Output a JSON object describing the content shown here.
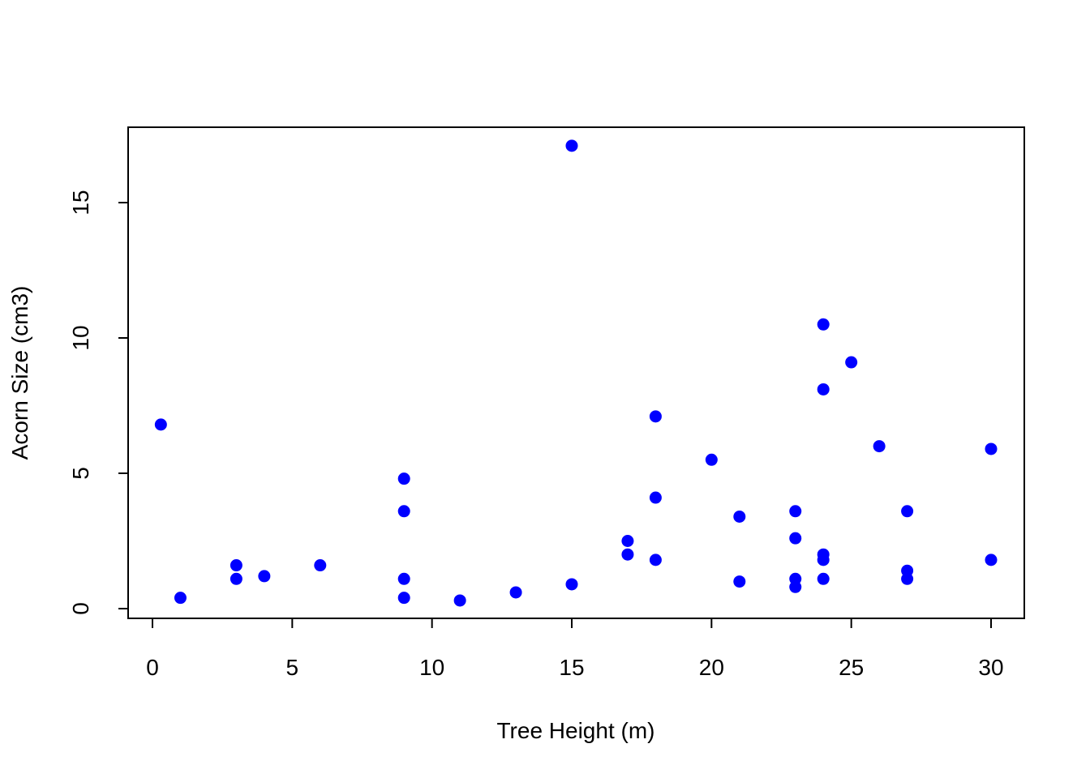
{
  "chart_data": {
    "type": "scatter",
    "title": "",
    "xlabel": "Tree Height (m)",
    "ylabel": "Acorn Size (cm3)",
    "xlim": [
      0,
      30
    ],
    "ylim": [
      0,
      17
    ],
    "xticks": [
      0,
      5,
      10,
      15,
      20,
      25,
      30
    ],
    "yticks": [
      0,
      5,
      10,
      15
    ],
    "xtick_labels": [
      "0",
      "5",
      "10",
      "15",
      "20",
      "25",
      "30"
    ],
    "ytick_labels": [
      "0",
      "5",
      "10",
      "15"
    ],
    "grid": false,
    "point_color": "#0000ff",
    "series": [
      {
        "name": "acorns",
        "points": [
          {
            "x": 0.3,
            "y": 6.8
          },
          {
            "x": 1,
            "y": 0.4
          },
          {
            "x": 3,
            "y": 1.6
          },
          {
            "x": 3,
            "y": 1.1
          },
          {
            "x": 4,
            "y": 1.2
          },
          {
            "x": 6,
            "y": 1.6
          },
          {
            "x": 9,
            "y": 4.8
          },
          {
            "x": 9,
            "y": 3.6
          },
          {
            "x": 9,
            "y": 1.1
          },
          {
            "x": 9,
            "y": 0.4
          },
          {
            "x": 11,
            "y": 0.3
          },
          {
            "x": 13,
            "y": 0.6
          },
          {
            "x": 15,
            "y": 17.1
          },
          {
            "x": 15,
            "y": 0.9
          },
          {
            "x": 17,
            "y": 2.5
          },
          {
            "x": 17,
            "y": 2.0
          },
          {
            "x": 18,
            "y": 7.1
          },
          {
            "x": 18,
            "y": 4.1
          },
          {
            "x": 18,
            "y": 1.8
          },
          {
            "x": 20,
            "y": 5.5
          },
          {
            "x": 21,
            "y": 3.4
          },
          {
            "x": 21,
            "y": 1.0
          },
          {
            "x": 23,
            "y": 3.6
          },
          {
            "x": 23,
            "y": 2.6
          },
          {
            "x": 23,
            "y": 1.1
          },
          {
            "x": 23,
            "y": 0.8
          },
          {
            "x": 24,
            "y": 10.5
          },
          {
            "x": 24,
            "y": 8.1
          },
          {
            "x": 24,
            "y": 2.0
          },
          {
            "x": 24,
            "y": 1.8
          },
          {
            "x": 24,
            "y": 1.1
          },
          {
            "x": 25,
            "y": 9.1
          },
          {
            "x": 26,
            "y": 6.0
          },
          {
            "x": 27,
            "y": 3.6
          },
          {
            "x": 27,
            "y": 1.4
          },
          {
            "x": 27,
            "y": 1.1
          },
          {
            "x": 30,
            "y": 5.9
          },
          {
            "x": 30,
            "y": 1.8
          }
        ]
      }
    ]
  }
}
